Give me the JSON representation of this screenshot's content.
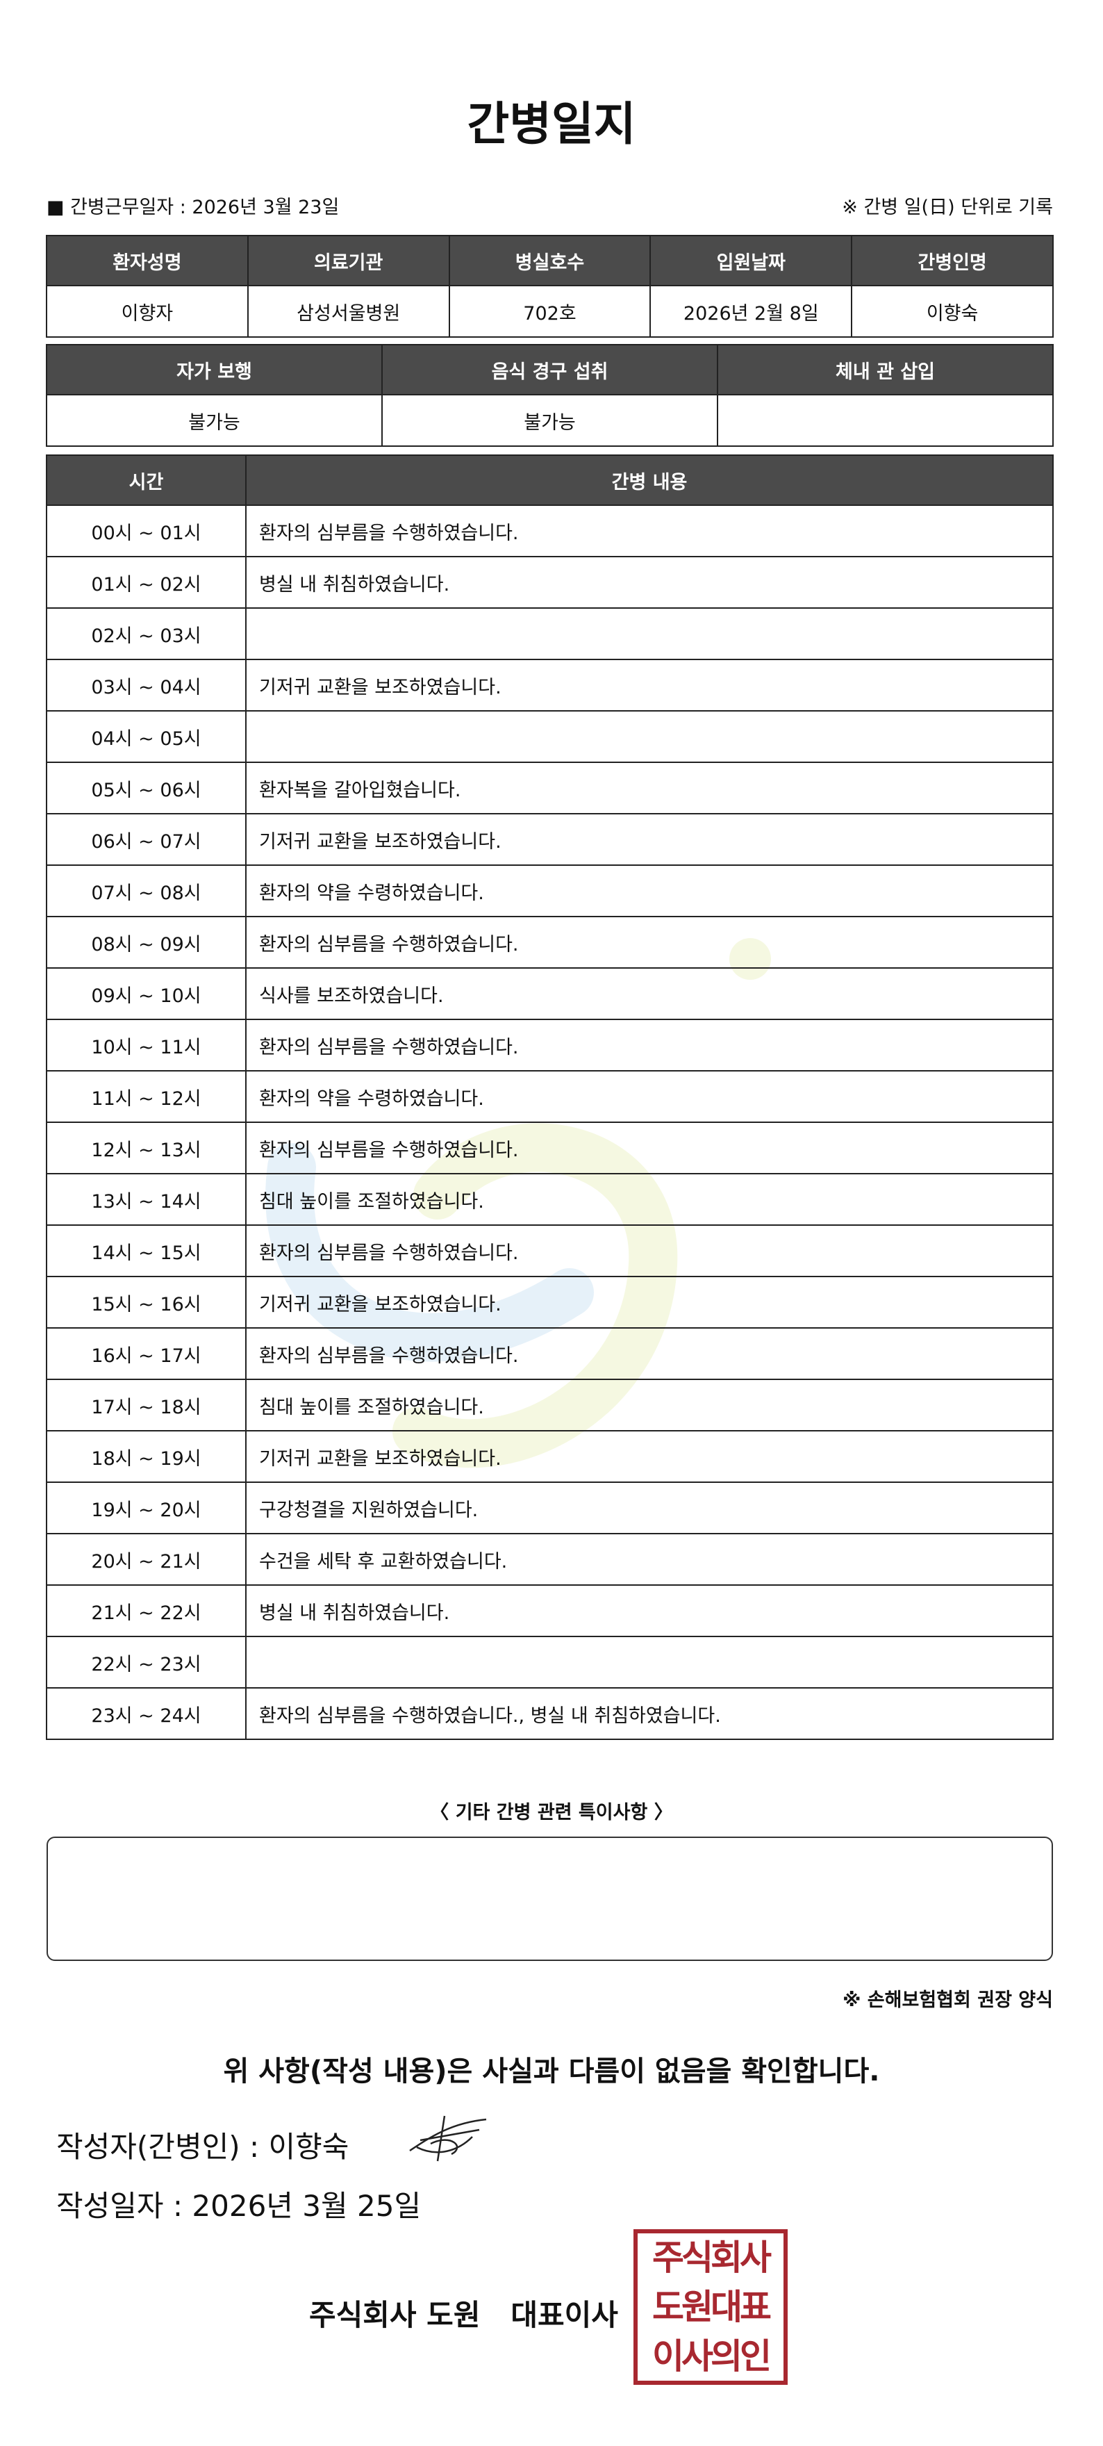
{
  "header": {
    "title": "간병일지"
  },
  "meta": {
    "work_date": "■ 간병근무일자 :  2026년 3월 23일",
    "note": "※ 간병 일(日) 단위로 기록"
  },
  "patient_table": {
    "headers": [
      "환자성명",
      "의료기관",
      "병실호수",
      "입원날짜",
      "간병인명"
    ],
    "values": [
      "이향자",
      "삼성서울병원",
      "702호",
      "2026년 2월 8일",
      "이향숙"
    ]
  },
  "status_table": {
    "headers": [
      "자가 보행",
      "음식 경구 섭취",
      "체내 관 삽입"
    ],
    "values": [
      "불가능",
      "불가능",
      null
    ]
  },
  "log_table": {
    "headers": [
      "시간",
      "간병 내용"
    ],
    "rows": [
      [
        "00시 ~ 01시",
        "환자의 심부름을 수행하였습니다."
      ],
      [
        "01시 ~ 02시",
        "병실 내 취침하였습니다."
      ],
      [
        "02시 ~ 03시",
        null
      ],
      [
        "03시 ~ 04시",
        "기저귀 교환을 보조하였습니다."
      ],
      [
        "04시 ~ 05시",
        null
      ],
      [
        "05시 ~ 06시",
        "환자복을 갈아입혔습니다."
      ],
      [
        "06시 ~ 07시",
        "기저귀 교환을 보조하였습니다."
      ],
      [
        "07시 ~ 08시",
        "환자의 약을 수령하였습니다."
      ],
      [
        "08시 ~ 09시",
        "환자의 심부름을 수행하였습니다."
      ],
      [
        "09시 ~ 10시",
        "식사를 보조하였습니다."
      ],
      [
        "10시 ~ 11시",
        "환자의 심부름을 수행하였습니다."
      ],
      [
        "11시 ~ 12시",
        "환자의 약을 수령하였습니다."
      ],
      [
        "12시 ~ 13시",
        "환자의 심부름을 수행하였습니다."
      ],
      [
        "13시 ~ 14시",
        "침대 높이를 조절하였습니다."
      ],
      [
        "14시 ~ 15시",
        "환자의 심부름을 수행하였습니다."
      ],
      [
        "15시 ~ 16시",
        "기저귀 교환을 보조하였습니다."
      ],
      [
        "16시 ~ 17시",
        "환자의 심부름을 수행하였습니다."
      ],
      [
        "17시 ~ 18시",
        "침대 높이를 조절하였습니다."
      ],
      [
        "18시 ~ 19시",
        "기저귀 교환을 보조하였습니다."
      ],
      [
        "19시 ~ 20시",
        "구강청결을 지원하였습니다."
      ],
      [
        "20시 ~ 21시",
        "수건을 세탁 후 교환하였습니다."
      ],
      [
        "21시 ~ 22시",
        "병실 내 취침하였습니다."
      ],
      [
        "22시 ~ 23시",
        null
      ],
      [
        "23시 ~ 24시",
        "환자의 심부름을 수행하였습니다., 병실 내 취침하였습니다."
      ]
    ]
  },
  "remarks": {
    "title": "〈 기타 간병 관련 특이사항 〉"
  },
  "form_note": "※ 손해보험협회 권장 양식",
  "confirmation": "위 사항(작성 내용)은 사실과 다름이 없음을 확인합니다.",
  "signature": {
    "writer": "작성자(간병인) :  이향숙",
    "date": "작성일자 :  2026년 3월 25일"
  },
  "company": {
    "name": "주식회사 도원   대표이사",
    "seal": [
      "주식회사",
      "도원대표",
      "이사의인"
    ]
  }
}
